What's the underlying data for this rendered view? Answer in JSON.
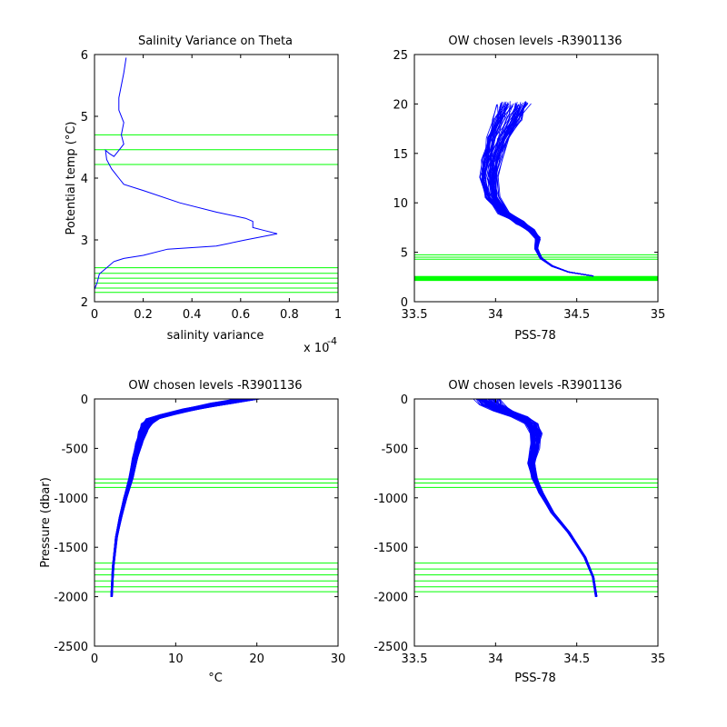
{
  "figure": {
    "background": "#ffffff"
  },
  "colors": {
    "profile": "#0000ff",
    "levels": "#00ff00",
    "axis": "#000000"
  },
  "chart_data": [
    {
      "type": "line",
      "id": "p1",
      "title": "Salinity Variance on Theta",
      "xlabel": "salinity variance",
      "ylabel": "Potential temp (°C)",
      "x_exponent_label": "x 10",
      "x_exponent_sup": "-4",
      "xlim": [
        0,
        1
      ],
      "ylim": [
        2,
        6
      ],
      "xticks": [
        0,
        0.2,
        0.4,
        0.6,
        0.8,
        1
      ],
      "xticklabels": [
        "0",
        "0.2",
        "0.4",
        "0.6",
        "0.8",
        "1"
      ],
      "yticks": [
        2,
        3,
        4,
        5,
        6
      ],
      "yticklabels": [
        "2",
        "3",
        "4",
        "5",
        "6"
      ],
      "series": [
        {
          "x": [
            0.13,
            0.12,
            0.11,
            0.1,
            0.1,
            0.12,
            0.11,
            0.12,
            0.1,
            0.08,
            0.06,
            0.045,
            0.05,
            0.07,
            0.1,
            0.12,
            0.2,
            0.35,
            0.5,
            0.62,
            0.65,
            0.65,
            0.7,
            0.75,
            0.62,
            0.5,
            0.3,
            0.2,
            0.12,
            0.08,
            0.05,
            0.02,
            0.01,
            0.0,
            0.0
          ],
          "y": [
            5.95,
            5.7,
            5.5,
            5.3,
            5.1,
            4.9,
            4.7,
            4.55,
            4.45,
            4.35,
            4.4,
            4.45,
            4.3,
            4.15,
            4.0,
            3.9,
            3.8,
            3.6,
            3.45,
            3.35,
            3.3,
            3.2,
            3.15,
            3.1,
            3.0,
            2.9,
            2.85,
            2.75,
            2.7,
            2.65,
            2.55,
            2.45,
            2.3,
            2.2,
            2.1
          ]
        }
      ],
      "hlines": [
        4.7,
        4.46,
        4.22,
        2.55,
        2.46,
        2.38,
        2.3,
        2.22,
        2.15
      ]
    },
    {
      "type": "line",
      "id": "p2",
      "title": "OW chosen levels -R3901136",
      "xlabel": "PSS-78",
      "ylabel": "",
      "xlim": [
        33.5,
        35
      ],
      "ylim": [
        0,
        25
      ],
      "xticks": [
        33.5,
        34,
        34.5,
        35
      ],
      "xticklabels": [
        "33.5",
        "34",
        "34.5",
        "35"
      ],
      "yticks": [
        0,
        5,
        10,
        15,
        20,
        25
      ],
      "yticklabels": [
        "0",
        "5",
        "10",
        "15",
        "20",
        "25"
      ],
      "profile_center": {
        "x": [
          34.6,
          34.45,
          34.35,
          34.28,
          34.25,
          34.26,
          34.22,
          34.15,
          34.05,
          33.98,
          33.96,
          33.98,
          34.02,
          34.08,
          34.12
        ],
        "y": [
          2.6,
          3.0,
          3.6,
          4.4,
          5.4,
          6.4,
          7.2,
          8.0,
          9.0,
          10.5,
          12.5,
          14.5,
          16.5,
          18.5,
          20.0
        ]
      },
      "hlines": [
        4.75,
        4.5,
        4.3,
        2.5,
        2.4,
        2.3,
        2.2
      ]
    },
    {
      "type": "line",
      "id": "p3",
      "title": "OW chosen levels -R3901136",
      "xlabel": "°C",
      "ylabel": "Pressure (dbar)",
      "xlim": [
        0,
        30
      ],
      "ylim": [
        -2500,
        0
      ],
      "xticks": [
        0,
        10,
        20,
        30
      ],
      "xticklabels": [
        "0",
        "10",
        "20",
        "30"
      ],
      "yticks": [
        -2500,
        -2000,
        -1500,
        -1000,
        -500,
        0
      ],
      "yticklabels": [
        "-2500",
        "-2000",
        "-1500",
        "-1000",
        "-500",
        "0"
      ],
      "profile_center": {
        "x": [
          2.1,
          2.3,
          2.7,
          3.2,
          3.8,
          4.5,
          5.0,
          5.5,
          6.0,
          6.5,
          7.2,
          9.0,
          12.0,
          16.0,
          19.0
        ],
        "y": [
          -2000,
          -1700,
          -1400,
          -1200,
          -1000,
          -800,
          -600,
          -450,
          -330,
          -250,
          -200,
          -160,
          -100,
          -40,
          0
        ]
      },
      "hlines": [
        -810,
        -850,
        -895,
        -1660,
        -1720,
        -1780,
        -1840,
        -1900,
        -1950
      ]
    },
    {
      "type": "line",
      "id": "p4",
      "title": "OW chosen levels -R3901136",
      "xlabel": "PSS-78",
      "ylabel": "",
      "xlim": [
        33.5,
        35
      ],
      "ylim": [
        -2500,
        0
      ],
      "xticks": [
        33.5,
        34,
        34.5,
        35
      ],
      "xticklabels": [
        "33.5",
        "34",
        "34.5",
        "35"
      ],
      "yticks": [
        -2500,
        -2000,
        -1500,
        -1000,
        -500,
        0
      ],
      "yticklabels": [
        "-2500",
        "-2000",
        "-1500",
        "-1000",
        "-500",
        "0"
      ],
      "profile_center": {
        "x": [
          34.62,
          34.6,
          34.55,
          34.45,
          34.35,
          34.28,
          34.24,
          34.22,
          34.24,
          34.25,
          34.22,
          34.15,
          34.05,
          33.98,
          33.95
        ],
        "y": [
          -2000,
          -1800,
          -1600,
          -1350,
          -1150,
          -950,
          -800,
          -650,
          -500,
          -350,
          -250,
          -180,
          -120,
          -60,
          0
        ]
      },
      "hlines": [
        -810,
        -850,
        -895,
        -1660,
        -1720,
        -1780,
        -1840,
        -1900,
        -1950
      ]
    }
  ]
}
